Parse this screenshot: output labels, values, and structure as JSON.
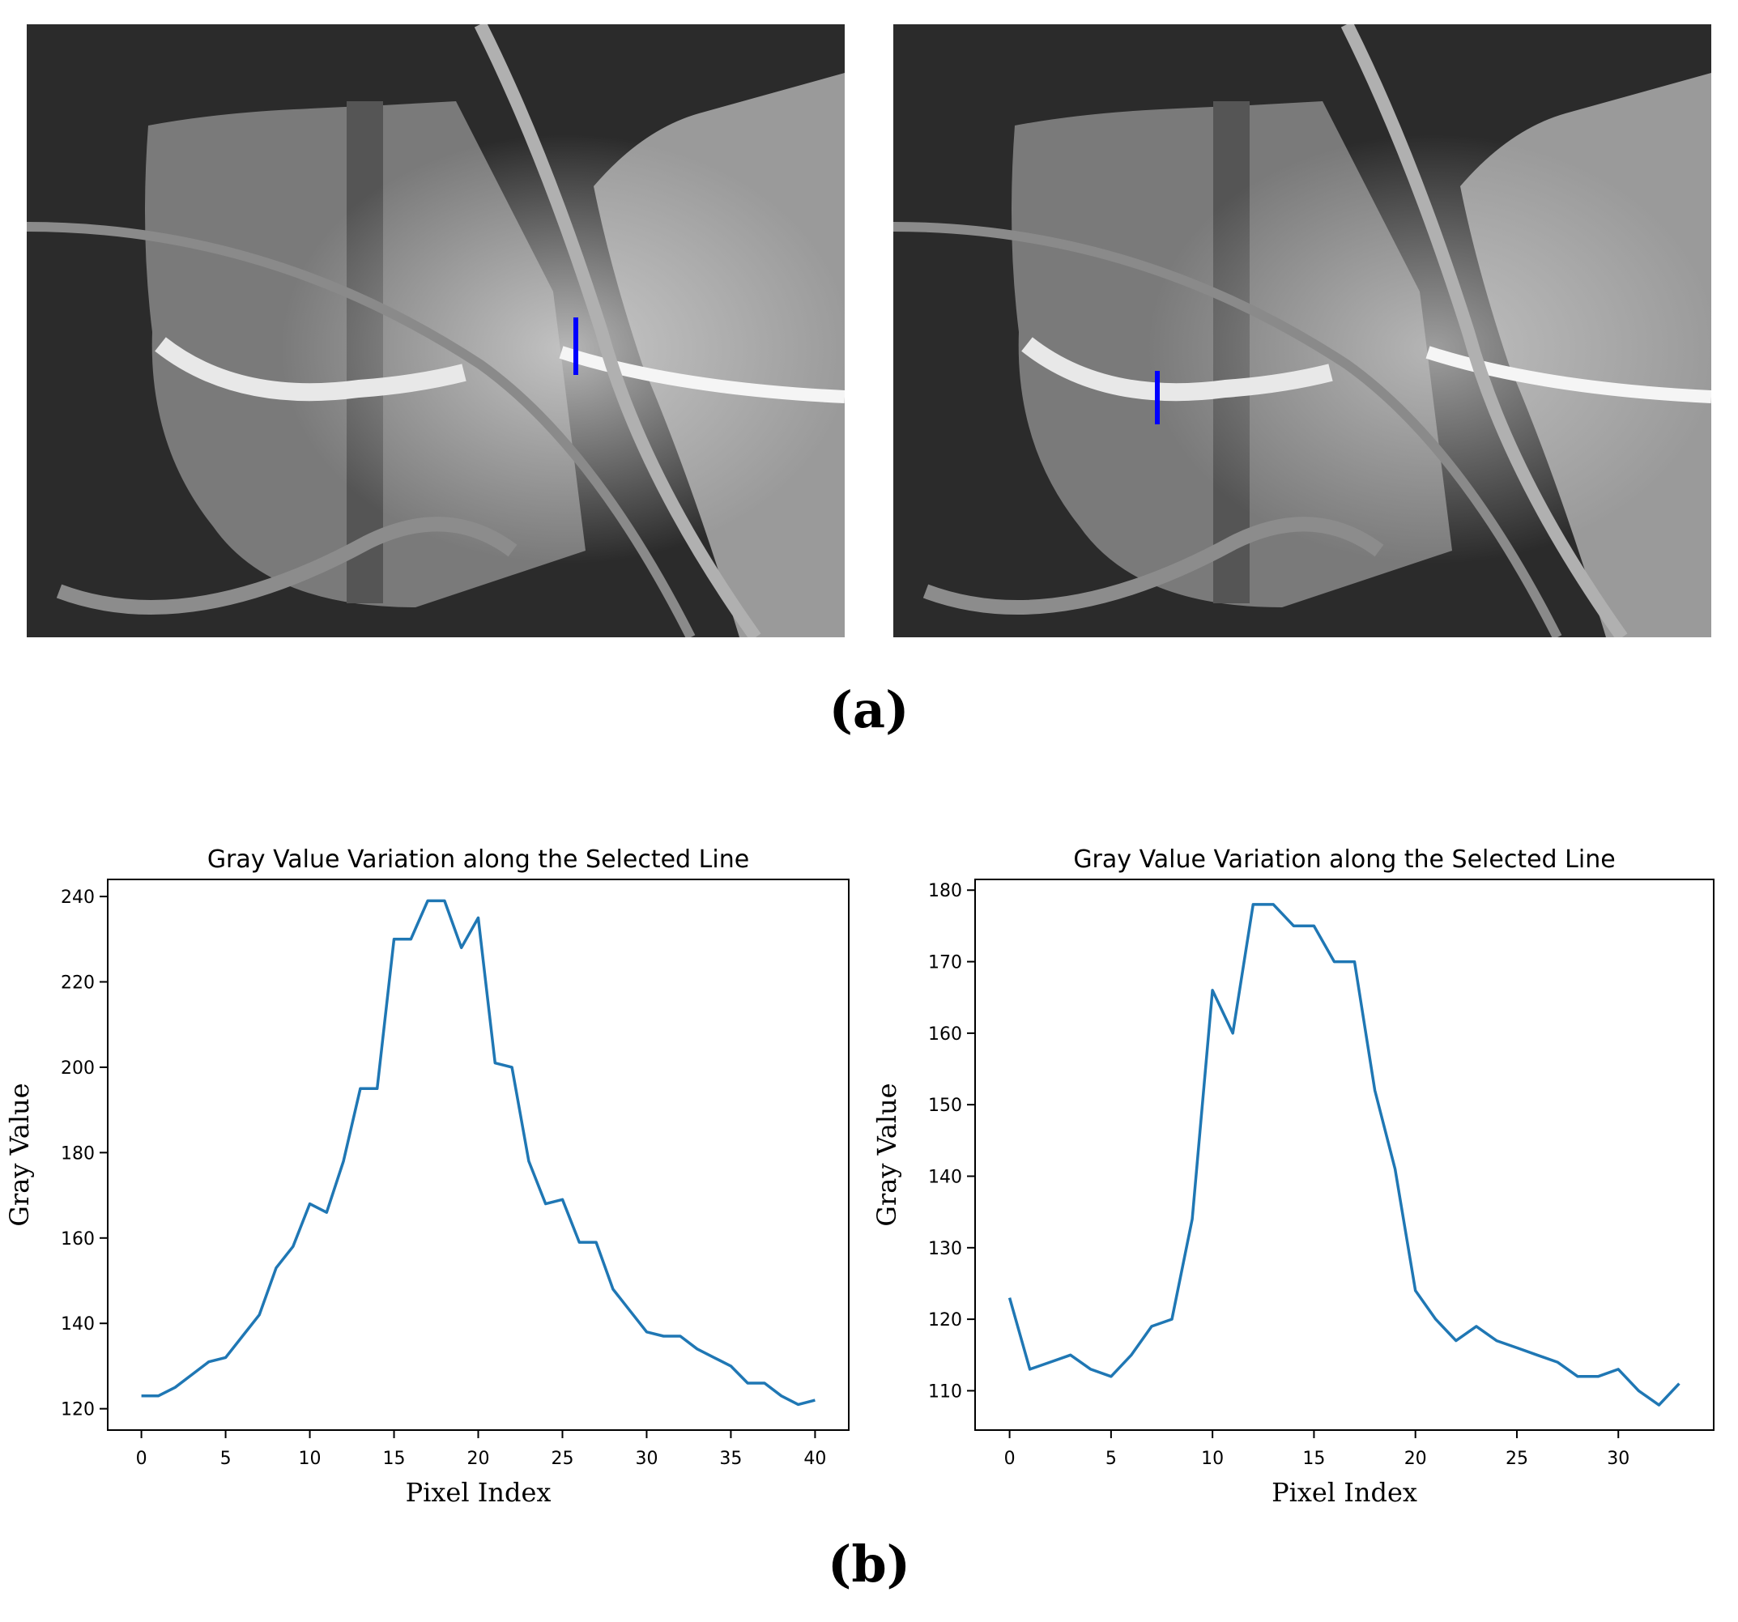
{
  "panels": {
    "a_label": "(a)",
    "b_label": "(b)"
  },
  "colors": {
    "line": "#1f77b4",
    "marker": "#0000ff",
    "photo_dark": "#2b2b2b"
  },
  "chart_data": [
    {
      "type": "line",
      "title": "Gray Value Variation along the Selected Line",
      "xlabel": "Pixel Index",
      "ylabel": "Gray Value",
      "x": [
        0,
        1,
        2,
        3,
        4,
        5,
        6,
        7,
        8,
        9,
        10,
        11,
        12,
        13,
        14,
        15,
        16,
        17,
        18,
        19,
        20,
        21,
        22,
        23,
        24,
        25,
        26,
        27,
        28,
        29,
        30,
        31,
        32,
        33,
        34,
        35,
        36,
        37,
        38,
        39,
        40
      ],
      "values": [
        123,
        123,
        125,
        128,
        131,
        132,
        137,
        142,
        153,
        158,
        168,
        166,
        178,
        195,
        195,
        230,
        230,
        239,
        239,
        228,
        235,
        201,
        200,
        178,
        168,
        169,
        159,
        159,
        148,
        143,
        138,
        137,
        137,
        134,
        132,
        130,
        126,
        126,
        123,
        121,
        122
      ],
      "xlim": [
        -2,
        42
      ],
      "ylim": [
        115,
        244
      ],
      "xticks": [
        0,
        5,
        10,
        15,
        20,
        25,
        30,
        35,
        40
      ],
      "yticks": [
        120,
        140,
        160,
        180,
        200,
        220,
        240
      ]
    },
    {
      "type": "line",
      "title": "Gray Value Variation along the Selected Line",
      "xlabel": "Pixel Index",
      "ylabel": "Gray Value",
      "x": [
        0,
        1,
        2,
        3,
        4,
        5,
        6,
        7,
        8,
        9,
        10,
        11,
        12,
        13,
        14,
        15,
        16,
        17,
        18,
        19,
        20,
        21,
        22,
        23,
        24,
        25,
        26,
        27,
        28,
        29,
        30,
        31,
        32,
        33
      ],
      "values": [
        123,
        113,
        114,
        115,
        113,
        112,
        115,
        119,
        120,
        134,
        166,
        160,
        178,
        178,
        175,
        175,
        170,
        170,
        152,
        141,
        124,
        120,
        117,
        119,
        117,
        116,
        115,
        114,
        112,
        112,
        113,
        110,
        108,
        111
      ],
      "xlim": [
        -1.7,
        34.7
      ],
      "ylim": [
        104.5,
        181.5
      ],
      "xticks": [
        0,
        5,
        10,
        15,
        20,
        25,
        30
      ],
      "yticks": [
        110,
        120,
        130,
        140,
        150,
        160,
        170,
        180
      ]
    }
  ]
}
